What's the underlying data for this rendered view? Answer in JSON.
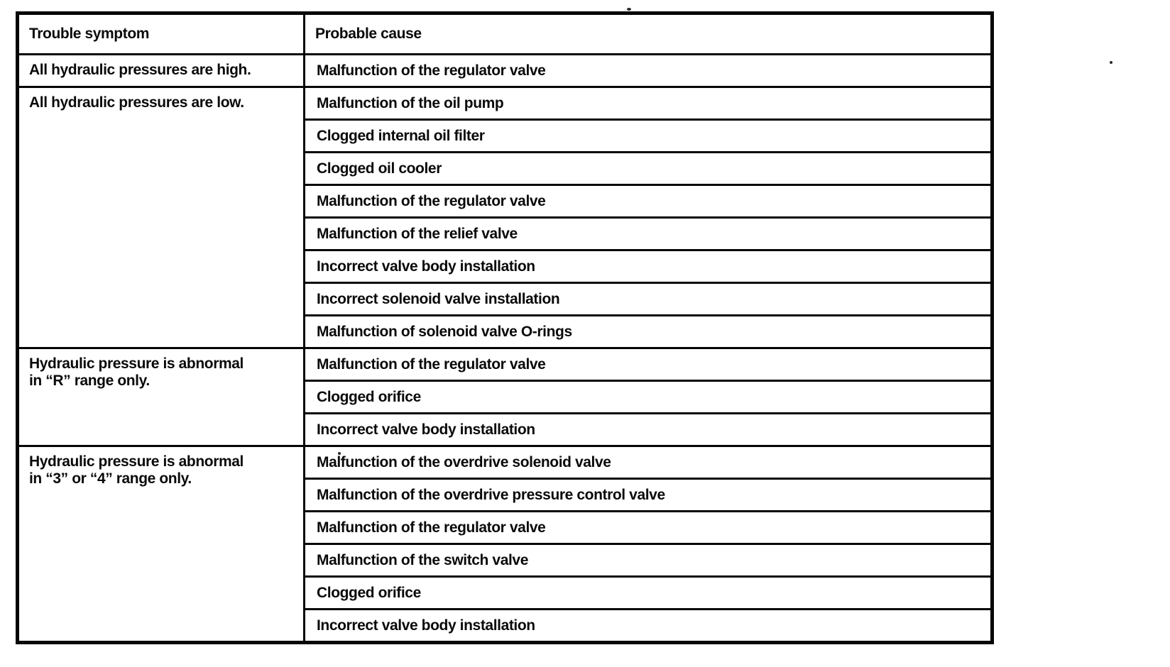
{
  "table": {
    "columns": [
      {
        "label": "Trouble symptom"
      },
      {
        "label": "Probable cause"
      }
    ],
    "groups": [
      {
        "symptom": "All hydraulic pressures are high.",
        "causes": [
          "Malfunction of the regulator valve"
        ]
      },
      {
        "symptom": "All hydraulic pressures are low.",
        "causes": [
          "Malfunction of the oil pump",
          "Clogged internal oil filter",
          "Clogged oil cooler",
          "Malfunction of the regulator valve",
          "Malfunction of the relief valve",
          "Incorrect valve body installation",
          "Incorrect solenoid valve installation",
          "Malfunction of solenoid valve O-rings"
        ]
      },
      {
        "symptom": "Hydraulic pressure is abnormal\nin “R” range only.",
        "causes": [
          "Malfunction of the regulator valve",
          "Clogged orifice",
          "Incorrect valve body installation"
        ]
      },
      {
        "symptom": "Hydraulic pressure is abnormal\nin “3” or “4” range only.",
        "causes": [
          "Malfunction of the overdrive solenoid valve",
          "Malfunction of the overdrive pressure control valve",
          "Malfunction of the regulator valve",
          "Malfunction of the switch valve",
          "Clogged orifice",
          "Incorrect valve body installation"
        ]
      }
    ],
    "ink_color": "#0a0a0a",
    "rule_color": "#060606",
    "paper_color": "#ffffff"
  }
}
